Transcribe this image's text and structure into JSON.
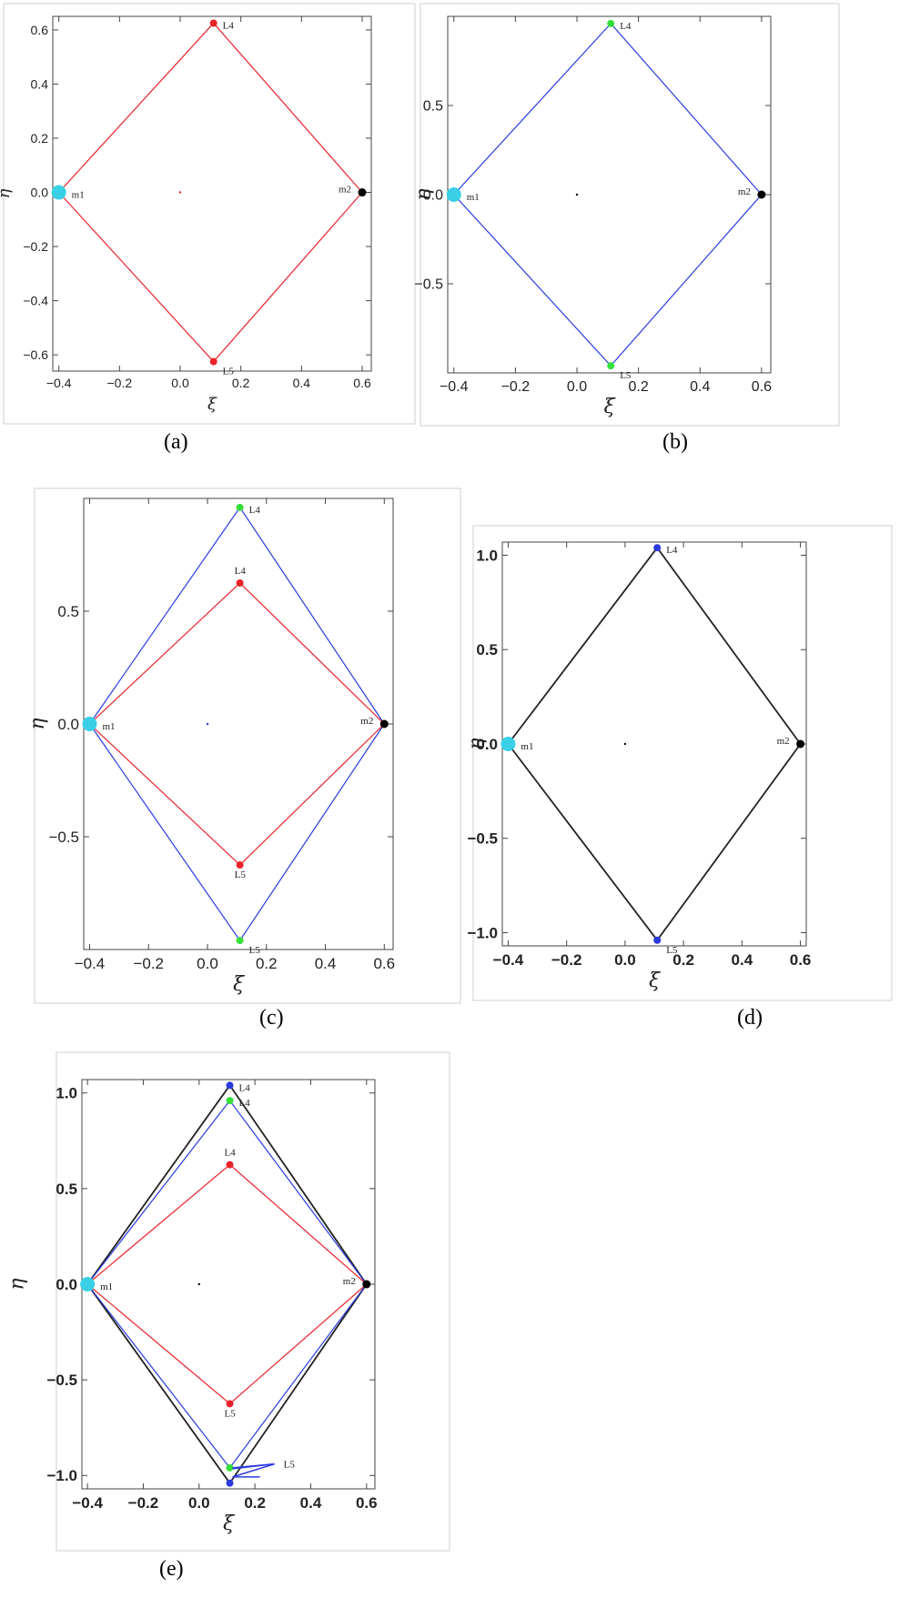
{
  "captions": {
    "a": "(a)",
    "b": "(b)",
    "c": "(c)",
    "d": "(d)",
    "e": "(e)"
  },
  "chart_data": [
    {
      "id": "a",
      "type": "scatter",
      "xlabel": "ξ",
      "ylabel": "η",
      "xlim": [
        -0.42,
        0.63
      ],
      "ylim": [
        -0.66,
        0.65
      ],
      "xticks": [
        -0.4,
        -0.2,
        0.0,
        0.2,
        0.4,
        0.6
      ],
      "xtick_labels": [
        "-0.4",
        "-0.2",
        "0.0",
        "0.2",
        "0.4",
        "0.6"
      ],
      "yticks": [
        -0.6,
        -0.4,
        -0.2,
        0.0,
        0.2,
        0.4,
        0.6
      ],
      "ytick_labels": [
        "-0.6",
        "-0.4",
        "-0.2",
        "0.0",
        "0.2",
        "0.4",
        "0.6"
      ],
      "series": [
        {
          "color": "#e8232a",
          "path": [
            [
              -0.4,
              0.0
            ],
            [
              0.11,
              0.625
            ],
            [
              0.6,
              0.0
            ],
            [
              0.11,
              -0.625
            ],
            [
              -0.4,
              0.0
            ]
          ],
          "points": [
            {
              "x": 0.11,
              "y": 0.625,
              "label": "L4"
            },
            {
              "x": 0.11,
              "y": -0.625,
              "label": "L5"
            }
          ]
        }
      ],
      "masses": [
        {
          "x": -0.4,
          "y": 0.0,
          "label": "m1",
          "color": "#39d0e6"
        },
        {
          "x": 0.6,
          "y": 0.0,
          "label": "m2",
          "color": "#000000"
        }
      ],
      "center_dot_color": "#e8232a"
    },
    {
      "id": "b",
      "type": "scatter",
      "xlabel": "ξ",
      "ylabel": "η",
      "xlim": [
        -0.42,
        0.63
      ],
      "ylim": [
        -1.0,
        1.0
      ],
      "xticks": [
        -0.4,
        -0.2,
        0.0,
        0.2,
        0.4,
        0.6
      ],
      "xtick_labels": [
        "-0.4",
        "-0.2",
        "0.0",
        "0.2",
        "0.4",
        "0.6"
      ],
      "yticks": [
        -0.5,
        0.0,
        0.5
      ],
      "ytick_labels": [
        "-0.5",
        "0.0",
        "0.5"
      ],
      "series": [
        {
          "color": "#2a39e0",
          "path": [
            [
              -0.4,
              0.0
            ],
            [
              0.11,
              0.96
            ],
            [
              0.6,
              0.0
            ],
            [
              0.11,
              -0.96
            ],
            [
              -0.4,
              0.0
            ]
          ],
          "points": [
            {
              "x": 0.11,
              "y": 0.96,
              "label": "L4",
              "color": "#33e03a"
            },
            {
              "x": 0.11,
              "y": -0.96,
              "label": "L5",
              "color": "#33e03a"
            }
          ]
        }
      ],
      "masses": [
        {
          "x": -0.4,
          "y": 0.0,
          "label": "m1",
          "color": "#39d0e6"
        },
        {
          "x": 0.6,
          "y": 0.0,
          "label": "m2",
          "color": "#000000"
        }
      ],
      "center_dot_color": "#000000"
    },
    {
      "id": "c",
      "type": "scatter",
      "xlabel": "ξ",
      "ylabel": "η",
      "xlim": [
        -0.42,
        0.63
      ],
      "ylim": [
        -1.0,
        1.0
      ],
      "xticks": [
        -0.4,
        -0.2,
        0.0,
        0.2,
        0.4,
        0.6
      ],
      "xtick_labels": [
        "-0.4",
        "-0.2",
        "0.0",
        "0.2",
        "0.4",
        "0.6"
      ],
      "yticks": [
        -0.5,
        0.0,
        0.5
      ],
      "ytick_labels": [
        "-0.5",
        "0.0",
        "0.5"
      ],
      "series": [
        {
          "color": "#2a39e0",
          "path": [
            [
              -0.4,
              0.0
            ],
            [
              0.11,
              0.96
            ],
            [
              0.6,
              0.0
            ],
            [
              0.11,
              -0.96
            ],
            [
              -0.4,
              0.0
            ]
          ],
          "points": [
            {
              "x": 0.11,
              "y": 0.96,
              "label": "L4",
              "color": "#33e03a"
            },
            {
              "x": 0.11,
              "y": -0.96,
              "label": "L5",
              "color": "#33e03a"
            }
          ]
        },
        {
          "color": "#e8232a",
          "path": [
            [
              -0.4,
              0.0
            ],
            [
              0.11,
              0.625
            ],
            [
              0.6,
              0.0
            ],
            [
              0.11,
              -0.625
            ],
            [
              -0.4,
              0.0
            ]
          ],
          "points": [
            {
              "x": 0.11,
              "y": 0.625,
              "label": "L4"
            },
            {
              "x": 0.11,
              "y": -0.625,
              "label": "L5"
            }
          ]
        }
      ],
      "masses": [
        {
          "x": -0.4,
          "y": 0.0,
          "label": "m1",
          "color": "#39d0e6"
        },
        {
          "x": 0.6,
          "y": 0.0,
          "label": "m2",
          "color": "#000000"
        }
      ],
      "center_dot_color": "#2a39e0"
    },
    {
      "id": "d",
      "type": "scatter",
      "xlabel": "ξ",
      "ylabel": "η",
      "xlim": [
        -0.42,
        0.62
      ],
      "ylim": [
        -1.07,
        1.07
      ],
      "xticks": [
        -0.4,
        -0.2,
        0.0,
        0.2,
        0.4,
        0.6
      ],
      "xtick_labels": [
        "-0.4",
        "-0.2",
        "0.0",
        "0.2",
        "0.4",
        "0.6"
      ],
      "yticks": [
        -1.0,
        -0.5,
        0.0,
        0.5,
        1.0
      ],
      "ytick_labels": [
        "-1.0",
        "-0.5",
        "0.0",
        "0.5",
        "1.0"
      ],
      "series": [
        {
          "color": "#222222",
          "path": [
            [
              -0.4,
              0.0
            ],
            [
              0.11,
              1.04
            ],
            [
              0.6,
              0.0
            ],
            [
              0.11,
              -1.04
            ],
            [
              -0.4,
              0.0
            ]
          ],
          "points": [
            {
              "x": 0.11,
              "y": 1.04,
              "label": "L4",
              "color": "#2a39e0"
            },
            {
              "x": 0.11,
              "y": -1.04,
              "label": "L5",
              "color": "#2a39e0"
            }
          ]
        }
      ],
      "masses": [
        {
          "x": -0.4,
          "y": 0.0,
          "label": "m1",
          "color": "#39d0e6"
        },
        {
          "x": 0.6,
          "y": 0.0,
          "label": "m2",
          "color": "#000000"
        }
      ],
      "center_dot_color": "#000000"
    },
    {
      "id": "e",
      "type": "scatter",
      "xlabel": "ξ",
      "ylabel": "η",
      "xlim": [
        -0.42,
        0.63
      ],
      "ylim": [
        -1.07,
        1.07
      ],
      "xticks": [
        -0.4,
        -0.2,
        0.0,
        0.2,
        0.4,
        0.6
      ],
      "xtick_labels": [
        "-0.4",
        "-0.2",
        "0.0",
        "0.2",
        "0.4",
        "0.6"
      ],
      "yticks": [
        -1.0,
        -0.5,
        0.0,
        0.5,
        1.0
      ],
      "ytick_labels": [
        "-1.0",
        "-0.5",
        "0.0",
        "0.5",
        "1.0"
      ],
      "series": [
        {
          "color": "#222222",
          "path": [
            [
              -0.4,
              0.0
            ],
            [
              0.11,
              1.04
            ],
            [
              0.6,
              0.0
            ],
            [
              0.11,
              -1.04
            ],
            [
              -0.4,
              0.0
            ]
          ],
          "points": [
            {
              "x": 0.11,
              "y": 1.04,
              "label": "L4",
              "color": "#2a39e0"
            },
            {
              "x": 0.11,
              "y": -1.04,
              "color": "#2a39e0"
            }
          ]
        },
        {
          "color": "#2a39e0",
          "path": [
            [
              -0.4,
              0.0
            ],
            [
              0.11,
              0.96
            ],
            [
              0.6,
              0.0
            ],
            [
              0.11,
              -0.96
            ],
            [
              -0.4,
              0.0
            ]
          ],
          "points": [
            {
              "x": 0.11,
              "y": 0.96,
              "label": "L4",
              "color": "#33e03a"
            },
            {
              "x": 0.11,
              "y": -0.96,
              "color": "#33e03a"
            }
          ]
        },
        {
          "color": "#e8232a",
          "path": [
            [
              -0.4,
              0.0
            ],
            [
              0.11,
              0.625
            ],
            [
              0.6,
              0.0
            ],
            [
              0.11,
              -0.625
            ],
            [
              -0.4,
              0.0
            ]
          ],
          "points": [
            {
              "x": 0.11,
              "y": 0.625,
              "label": "L4"
            },
            {
              "x": 0.11,
              "y": -0.625,
              "label": "L5"
            }
          ]
        }
      ],
      "annotation": {
        "text": "L5",
        "color": "#2a39e0",
        "from": [
          0.12,
          -0.96
        ],
        "to": [
          0.27,
          -0.94
        ]
      },
      "masses": [
        {
          "x": -0.4,
          "y": 0.0,
          "label": "m1",
          "color": "#39d0e6"
        },
        {
          "x": 0.6,
          "y": 0.0,
          "label": "m2",
          "color": "#000000"
        }
      ],
      "center_dot_color": "#000000"
    }
  ]
}
